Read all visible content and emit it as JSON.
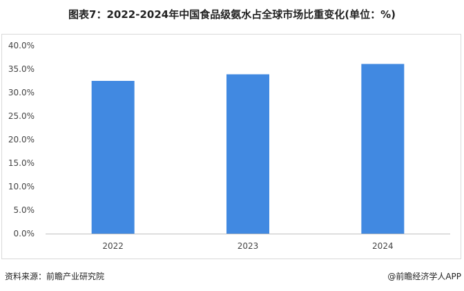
{
  "title": "图表7：2022-2024年中国食品级氨水占全球市场比重变化(单位：%)",
  "source": "资料来源：前瞻产业研究院",
  "brand": "@前瞻经济学人APP",
  "colors": {
    "bar": "#4189e1",
    "axis": "#bfbfbf",
    "frame": "#d9d9d9"
  },
  "chart_data": {
    "type": "bar",
    "title": "图表7：2022-2024年中国食品级氨水占全球市场比重变化(单位：%)",
    "categories": [
      "2022",
      "2023",
      "2024"
    ],
    "values": [
      32.5,
      33.9,
      36.1
    ],
    "unit": "%",
    "ylim": [
      0,
      40
    ],
    "yticks": [
      "0.0%",
      "5.0%",
      "10.0%",
      "15.0%",
      "20.0%",
      "25.0%",
      "30.0%",
      "35.0%",
      "40.0%"
    ],
    "xlabel": "",
    "ylabel": "",
    "grid": false,
    "legend": "none"
  }
}
